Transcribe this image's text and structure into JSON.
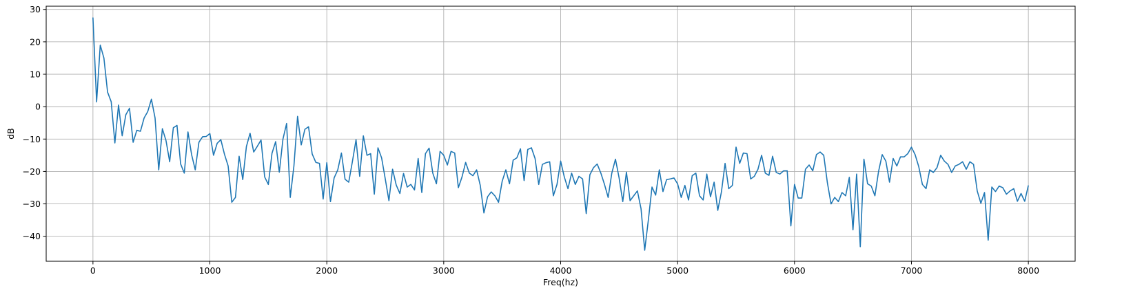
{
  "chart_data": {
    "type": "line",
    "title": "",
    "xlabel": "Freq(hz)",
    "ylabel": "dB",
    "xlim": [
      -400,
      8400
    ],
    "ylim": [
      -47.7,
      31
    ],
    "grid": true,
    "legend": "none",
    "xticks": [
      0,
      1000,
      2000,
      3000,
      4000,
      5000,
      6000,
      7000,
      8000
    ],
    "xtick_labels": [
      "0",
      "1000",
      "2000",
      "3000",
      "4000",
      "5000",
      "6000",
      "7000",
      "8000"
    ],
    "yticks": [
      30,
      20,
      10,
      0,
      -10,
      -20,
      -30,
      -40
    ],
    "ytick_labels": [
      "30",
      "20",
      "10",
      "0",
      "−10",
      "−20",
      "−30",
      "−40"
    ],
    "colors": {
      "line": "#1f77b4",
      "grid": "#b0b0b0",
      "axis": "#000000"
    },
    "series": [
      {
        "x_start": 0,
        "x_step": 31.25,
        "values": [
          27.5,
          1.5,
          19,
          15,
          4.5,
          1.5,
          -11.2,
          0.5,
          -9,
          -2.5,
          -0.5,
          -11,
          -7.3,
          -7.6,
          -3.5,
          -1.5,
          2.3,
          -3.5,
          -19.5,
          -6.8,
          -10.5,
          -17,
          -6.5,
          -5.8,
          -17.7,
          -20.5,
          -7.8,
          -14.8,
          -19.5,
          -11,
          -9.3,
          -9.2,
          -8.3,
          -15,
          -11.3,
          -10.2,
          -14.7,
          -18.3,
          -29.5,
          -28,
          -15.3,
          -22.5,
          -12.3,
          -8.2,
          -14,
          -12.2,
          -10.3,
          -21.7,
          -24,
          -14.4,
          -10.8,
          -20.2,
          -10,
          -5.2,
          -28,
          -18.3,
          -3,
          -11.8,
          -7,
          -6.2,
          -14.6,
          -17.2,
          -17.5,
          -28.5,
          -17.3,
          -29.3,
          -22,
          -19.5,
          -14.3,
          -22.4,
          -23.3,
          -17,
          -10.2,
          -21.5,
          -9,
          -15,
          -14.5,
          -27,
          -12.7,
          -15.8,
          -22.3,
          -29,
          -19.3,
          -24.2,
          -26.8,
          -20.6,
          -24.8,
          -24,
          -25.7,
          -16,
          -26.5,
          -14.5,
          -12.8,
          -20.5,
          -23.8,
          -13.8,
          -15,
          -18,
          -13.8,
          -14.3,
          -25,
          -21.7,
          -17.2,
          -20.5,
          -21.3,
          -19.5,
          -24.3,
          -32.8,
          -27.8,
          -26.3,
          -27.5,
          -29.5,
          -23,
          -19.5,
          -23.8,
          -16.5,
          -15.8,
          -13,
          -22.8,
          -13.2,
          -12.7,
          -16,
          -24,
          -17.8,
          -17.3,
          -17,
          -27.5,
          -24,
          -16.8,
          -21.7,
          -25.3,
          -20.5,
          -24,
          -21.5,
          -22.3,
          -33,
          -21,
          -18.8,
          -17.7,
          -20.5,
          -24,
          -28,
          -20.5,
          -16.2,
          -22,
          -29.3,
          -20.2,
          -29,
          -27.5,
          -26,
          -31.5,
          -44.3,
          -35,
          -24.8,
          -27.3,
          -19.5,
          -26.2,
          -22.5,
          -22.3,
          -22,
          -23.8,
          -28,
          -24.3,
          -28.8,
          -21.3,
          -20.5,
          -27.5,
          -28.8,
          -20.8,
          -27.8,
          -23.3,
          -32,
          -26.3,
          -17.5,
          -25.3,
          -24.3,
          -12.5,
          -17.5,
          -14.3,
          -14.5,
          -22.3,
          -21.5,
          -19.3,
          -15,
          -20.5,
          -21.2,
          -15.3,
          -20.3,
          -20.8,
          -19.8,
          -19.8,
          -36.8,
          -24,
          -28.2,
          -28.2,
          -19.3,
          -18,
          -19.8,
          -14.8,
          -14,
          -15,
          -23.5,
          -30,
          -28,
          -29.3,
          -26.5,
          -27.5,
          -21.8,
          -38,
          -20.8,
          -43.2,
          -16.2,
          -23.8,
          -24.5,
          -27.5,
          -20,
          -14.8,
          -16.8,
          -23.3,
          -16,
          -18.3,
          -15.5,
          -15.5,
          -14.5,
          -12.5,
          -14.8,
          -18.5,
          -24,
          -25.3,
          -19.5,
          -20.3,
          -18.8,
          -15,
          -16.8,
          -17.8,
          -20.3,
          -18.3,
          -17.8,
          -17,
          -19.3,
          -17,
          -17.8,
          -26,
          -29.8,
          -26.5,
          -41.2,
          -24.8,
          -26.2,
          -24.5,
          -25,
          -27,
          -26,
          -25.3,
          -29.2,
          -26.8,
          -29.2,
          -24.3
        ]
      }
    ]
  }
}
